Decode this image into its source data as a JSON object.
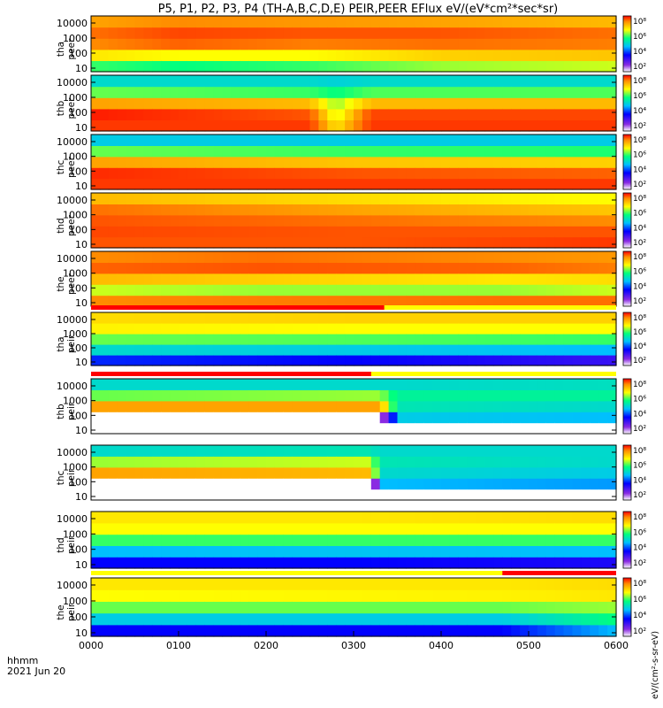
{
  "chart_data": {
    "type": "heatmap",
    "title": "P5, P1, P2, P3, P4 (TH-A,B,C,D,E) PEIR,PEER EFlux eV/(eV*cm²*sec*sr)",
    "x_tick_labels": [
      "0000",
      "0100",
      "0200",
      "0300",
      "0400",
      "0500",
      "0600"
    ],
    "x_footer": [
      "hhmm",
      "2021 Jun 20"
    ],
    "xlim_hours": [
      0,
      6
    ],
    "y_scale": "log",
    "y_tick_labels": [
      "10",
      "100",
      "1000",
      "10000"
    ],
    "color_scale": "log",
    "colorbar_tick_labels": [
      "10²",
      "10⁴",
      "10⁶",
      "10⁸"
    ],
    "colorbar_axis_label": "eV/(cm²-s-sr-eV)",
    "colors": {
      "low": "#8a2be2",
      "mid_low": "#00bfff",
      "mid": "#00ff7f",
      "mid_high": "#ffff00",
      "high": "#ff0000"
    },
    "panels": [
      {
        "label": [
          "tha",
          "peer"
        ],
        "species": "electron",
        "probe": "A",
        "profile": [
          {
            "x": 0.0,
            "levels": [
              5.2,
              6.2,
              7.0,
              7.2,
              6.8
            ]
          },
          {
            "x": 1.0,
            "levels": [
              5.0,
              6.0,
              7.3,
              7.5,
              7.0
            ]
          },
          {
            "x": 2.5,
            "levels": [
              5.2,
              6.0,
              7.1,
              7.4,
              6.9
            ]
          },
          {
            "x": 4.0,
            "levels": [
              5.6,
              6.4,
              7.2,
              7.4,
              6.8
            ]
          },
          {
            "x": 6.0,
            "levels": [
              5.8,
              6.5,
              7.1,
              7.2,
              6.6
            ]
          }
        ]
      },
      {
        "label": [
          "thb",
          "peer"
        ],
        "species": "electron",
        "probe": "B",
        "profile": [
          {
            "x": 0.0,
            "levels": [
              7.6,
              7.8,
              6.8,
              5.4,
              4.4
            ]
          },
          {
            "x": 2.5,
            "levels": [
              7.6,
              7.4,
              6.6,
              5.2,
              4.4
            ]
          },
          {
            "x": 2.8,
            "levels": [
              6.2,
              5.8,
              5.6,
              5.0,
              4.3
            ]
          },
          {
            "x": 3.2,
            "levels": [
              7.6,
              7.5,
              6.6,
              5.3,
              4.4
            ]
          },
          {
            "x": 6.0,
            "levels": [
              7.6,
              7.5,
              6.6,
              5.3,
              4.4
            ]
          }
        ]
      },
      {
        "label": [
          "thc",
          "peer"
        ],
        "species": "electron",
        "probe": "C",
        "profile": [
          {
            "x": 0.0,
            "levels": [
              7.6,
              7.7,
              6.8,
              5.4,
              4.2
            ]
          },
          {
            "x": 3.0,
            "levels": [
              7.6,
              7.4,
              6.5,
              5.2,
              4.2
            ]
          },
          {
            "x": 6.0,
            "levels": [
              7.6,
              7.3,
              6.4,
              5.1,
              4.2
            ]
          }
        ]
      },
      {
        "label": [
          "thd",
          "peer"
        ],
        "species": "electron",
        "probe": "D",
        "profile": [
          {
            "x": 0.0,
            "levels": [
              7.4,
              7.5,
              7.4,
              7.2,
              6.6
            ]
          },
          {
            "x": 3.0,
            "levels": [
              7.4,
              7.4,
              7.2,
              6.8,
              6.3
            ]
          },
          {
            "x": 6.0,
            "levels": [
              7.6,
              7.4,
              7.0,
              6.5,
              6.0
            ]
          }
        ]
      },
      {
        "label": [
          "the",
          "peer"
        ],
        "species": "electron",
        "probe": "E",
        "profile": [
          {
            "x": 0.0,
            "levels": [
              7.0,
              5.8,
              6.6,
              7.3,
              7.0
            ]
          },
          {
            "x": 2.0,
            "levels": [
              7.1,
              5.6,
              6.4,
              7.4,
              7.2
            ]
          },
          {
            "x": 4.7,
            "levels": [
              7.2,
              5.6,
              6.2,
              7.3,
              7.0
            ]
          },
          {
            "x": 6.0,
            "levels": [
              7.2,
              5.8,
              6.3,
              7.1,
              6.9
            ]
          }
        ]
      },
      {
        "label": [
          "tha",
          "peir"
        ],
        "species": "ion",
        "probe": "A",
        "profile": [
          {
            "x": 0.0,
            "levels": [
              3.2,
              4.4,
              5.4,
              6.1,
              6.3
            ]
          },
          {
            "x": 3.0,
            "levels": [
              3.0,
              4.2,
              5.3,
              6.0,
              6.4
            ]
          },
          {
            "x": 6.0,
            "levels": [
              2.6,
              4.0,
              5.2,
              6.0,
              6.4
            ]
          }
        ]
      },
      {
        "label": [
          "thb",
          "peir"
        ],
        "species": "ion",
        "probe": "B",
        "profile": [
          {
            "x": 0.0,
            "levels": [
              0.0,
              0.0,
              6.8,
              5.4,
              4.4
            ]
          },
          {
            "x": 3.3,
            "levels": [
              0.0,
              0.0,
              6.8,
              5.6,
              4.4
            ]
          },
          {
            "x": 3.5,
            "levels": [
              0.0,
              4.2,
              4.6,
              4.8,
              4.4
            ]
          },
          {
            "x": 6.0,
            "levels": [
              0.0,
              4.0,
              4.4,
              4.8,
              4.5
            ]
          }
        ]
      },
      {
        "label": [
          "thc",
          "peir"
        ],
        "species": "ion",
        "probe": "C",
        "profile": [
          {
            "x": 0.0,
            "levels": [
              0.0,
              0.0,
              6.8,
              5.6,
              4.4
            ]
          },
          {
            "x": 3.2,
            "levels": [
              0.0,
              0.0,
              6.6,
              5.8,
              4.6
            ]
          },
          {
            "x": 3.3,
            "levels": [
              0.0,
              4.0,
              4.4,
              4.6,
              4.4
            ]
          },
          {
            "x": 6.0,
            "levels": [
              0.0,
              3.8,
              4.2,
              4.4,
              4.4
            ]
          }
        ]
      },
      {
        "label": [
          "thd",
          "peir"
        ],
        "species": "ion",
        "probe": "D",
        "profile": [
          {
            "x": 0.0,
            "levels": [
              3.0,
              4.0,
              5.2,
              6.0,
              6.2
            ]
          },
          {
            "x": 3.0,
            "levels": [
              3.0,
              4.1,
              5.2,
              6.0,
              6.2
            ]
          },
          {
            "x": 6.0,
            "levels": [
              2.8,
              4.0,
              5.2,
              6.0,
              6.3
            ]
          }
        ]
      },
      {
        "label": [
          "the",
          "peir"
        ],
        "species": "ion",
        "probe": "E",
        "profile": [
          {
            "x": 0.0,
            "levels": [
              3.0,
              4.2,
              5.4,
              6.0,
              6.2
            ]
          },
          {
            "x": 4.7,
            "levels": [
              3.0,
              4.2,
              5.4,
              6.1,
              6.2
            ]
          },
          {
            "x": 6.0,
            "levels": [
              4.0,
              5.0,
              5.6,
              6.2,
              6.3
            ]
          }
        ]
      }
    ],
    "mode_bars": [
      {
        "panel": 5,
        "segments": [
          {
            "from": 0.0,
            "to": 3.35,
            "color": "#ff0000"
          }
        ]
      },
      {
        "panel": 6,
        "segments": [
          {
            "from": 0.0,
            "to": 3.2,
            "color": "#ff0000"
          }
        ]
      },
      {
        "panel": 9,
        "segments": [
          {
            "from": 4.7,
            "to": 6.0,
            "color": "#ff0000"
          }
        ]
      }
    ]
  }
}
